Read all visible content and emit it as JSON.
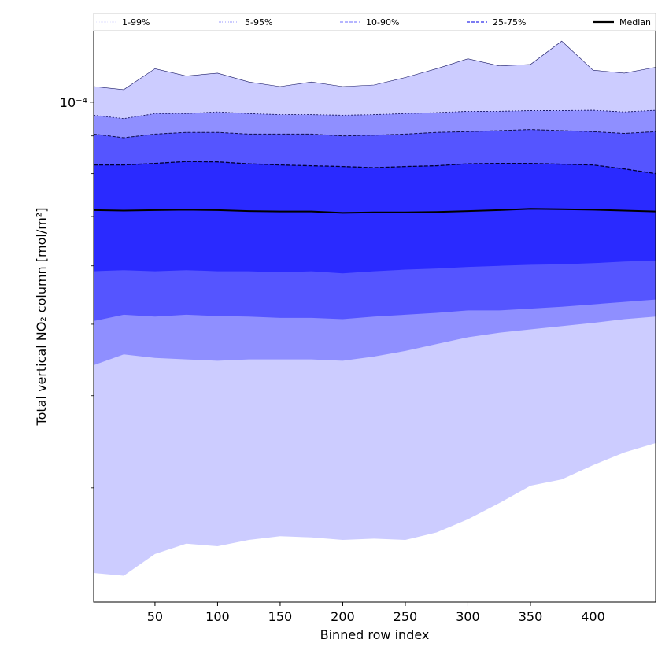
{
  "chart_data": {
    "type": "area",
    "title": "",
    "xlabel": "Binned row index",
    "ylabel": "Total vertical NO₂ column [mol/m²]",
    "y_scale": "log",
    "grid": false,
    "legend_placement": "top, spanning full width above plot",
    "xlim": [
      1,
      450
    ],
    "ylim": [
      2.1e-05,
      0.000125
    ],
    "x_ticks": [
      50,
      100,
      150,
      200,
      250,
      300,
      350,
      400
    ],
    "x_tick_labels": [
      "50",
      "100",
      "150",
      "200",
      "250",
      "300",
      "350",
      "400"
    ],
    "y_tick_label_text": "10⁻⁴",
    "y_tick_label_value": 0.0001,
    "y_minor_ticks": [
      3e-05,
      4e-05,
      5e-05,
      6e-05,
      7e-05,
      8e-05,
      9e-05
    ],
    "x": [
      1,
      25,
      50,
      75,
      100,
      125,
      150,
      175,
      200,
      225,
      250,
      275,
      300,
      325,
      350,
      375,
      400,
      425,
      450
    ],
    "legend": [
      {
        "label": "1-99%",
        "color": "#ccccff",
        "line_style": "dotted-thin"
      },
      {
        "label": "5-95%",
        "color": "#8888ff",
        "line_style": "dotted"
      },
      {
        "label": "10-90%",
        "color": "#6666ff",
        "line_style": "dashed"
      },
      {
        "label": "25-75%",
        "color": "#3333ee",
        "line_style": "dashed"
      },
      {
        "label": "Median",
        "color": "#000000",
        "line_style": "solid"
      }
    ],
    "series": [
      {
        "name": "1-99%",
        "color": "#ccccff",
        "lower": [
          2.3e-05,
          2.28e-05,
          2.44e-05,
          2.52e-05,
          2.5e-05,
          2.55e-05,
          2.58e-05,
          2.57e-05,
          2.55e-05,
          2.56e-05,
          2.55e-05,
          2.61e-05,
          2.72e-05,
          2.86e-05,
          3.02e-05,
          3.08e-05,
          3.22e-05,
          3.35e-05,
          3.45e-05
        ],
        "upper": [
          0.000105,
          0.000104,
          0.000111,
          0.0001085,
          0.0001095,
          0.0001065,
          0.000105,
          0.0001065,
          0.000105,
          0.0001055,
          0.000108,
          0.000111,
          0.0001145,
          0.000112,
          0.0001125,
          0.000121,
          0.0001105,
          0.0001095,
          0.0001115
        ]
      },
      {
        "name": "5-95%",
        "color": "#8888ff",
        "lower": [
          4.4e-05,
          4.55e-05,
          4.5e-05,
          4.48e-05,
          4.46e-05,
          4.48e-05,
          4.48e-05,
          4.48e-05,
          4.46e-05,
          4.52e-05,
          4.6e-05,
          4.7e-05,
          4.8e-05,
          4.87e-05,
          4.92e-05,
          4.97e-05,
          5.02e-05,
          5.08e-05,
          5.12e-05
        ]
      },
      {
        "name": "5-95%",
        "color": "#8888ff",
        "upper": [
          9.6e-05,
          9.5e-05,
          9.65e-05,
          9.65e-05,
          9.7e-05,
          9.65e-05,
          9.62e-05,
          9.62e-05,
          9.6e-05,
          9.62e-05,
          9.65e-05,
          9.68e-05,
          9.72e-05,
          9.72e-05,
          9.74e-05,
          9.74e-05,
          9.75e-05,
          9.7e-05,
          9.75e-05
        ]
      },
      {
        "name": "10-90%",
        "color": "#6666ff",
        "lower": [
          5.05e-05,
          5.15e-05,
          5.12e-05,
          5.15e-05,
          5.13e-05,
          5.12e-05,
          5.1e-05,
          5.1e-05,
          5.08e-05,
          5.12e-05,
          5.15e-05,
          5.18e-05,
          5.22e-05,
          5.22e-05,
          5.25e-05,
          5.28e-05,
          5.32e-05,
          5.36e-05,
          5.4e-05
        ],
        "upper": [
          9.05e-05,
          8.95e-05,
          9.05e-05,
          9.1e-05,
          9.1e-05,
          9.05e-05,
          9.05e-05,
          9.05e-05,
          9e-05,
          9.02e-05,
          9.05e-05,
          9.1e-05,
          9.12e-05,
          9.15e-05,
          9.18e-05,
          9.15e-05,
          9.12e-05,
          9.07e-05,
          9.12e-05
        ]
      },
      {
        "name": "25-75%",
        "color": "#3333ee",
        "lower": [
          5.9e-05,
          5.92e-05,
          5.9e-05,
          5.92e-05,
          5.9e-05,
          5.9e-05,
          5.88e-05,
          5.9e-05,
          5.86e-05,
          5.9e-05,
          5.93e-05,
          5.95e-05,
          5.98e-05,
          6e-05,
          6.02e-05,
          6.03e-05,
          6.05e-05,
          6.08e-05,
          6.1e-05
        ],
        "upper": [
          8.22e-05,
          8.22e-05,
          8.26e-05,
          8.31e-05,
          8.3e-05,
          8.25e-05,
          8.22e-05,
          8.2e-05,
          8.18e-05,
          8.15e-05,
          8.18e-05,
          8.2e-05,
          8.25e-05,
          8.26e-05,
          8.26e-05,
          8.24e-05,
          8.22e-05,
          8.12e-05,
          8e-05
        ]
      },
      {
        "name": "Median",
        "color": "#000000",
        "values": [
          7.14e-05,
          7.13e-05,
          7.14e-05,
          7.15e-05,
          7.14e-05,
          7.12e-05,
          7.11e-05,
          7.11e-05,
          7.08e-05,
          7.09e-05,
          7.09e-05,
          7.1e-05,
          7.12e-05,
          7.14e-05,
          7.17e-05,
          7.16e-05,
          7.15e-05,
          7.13e-05,
          7.11e-05
        ]
      }
    ]
  }
}
